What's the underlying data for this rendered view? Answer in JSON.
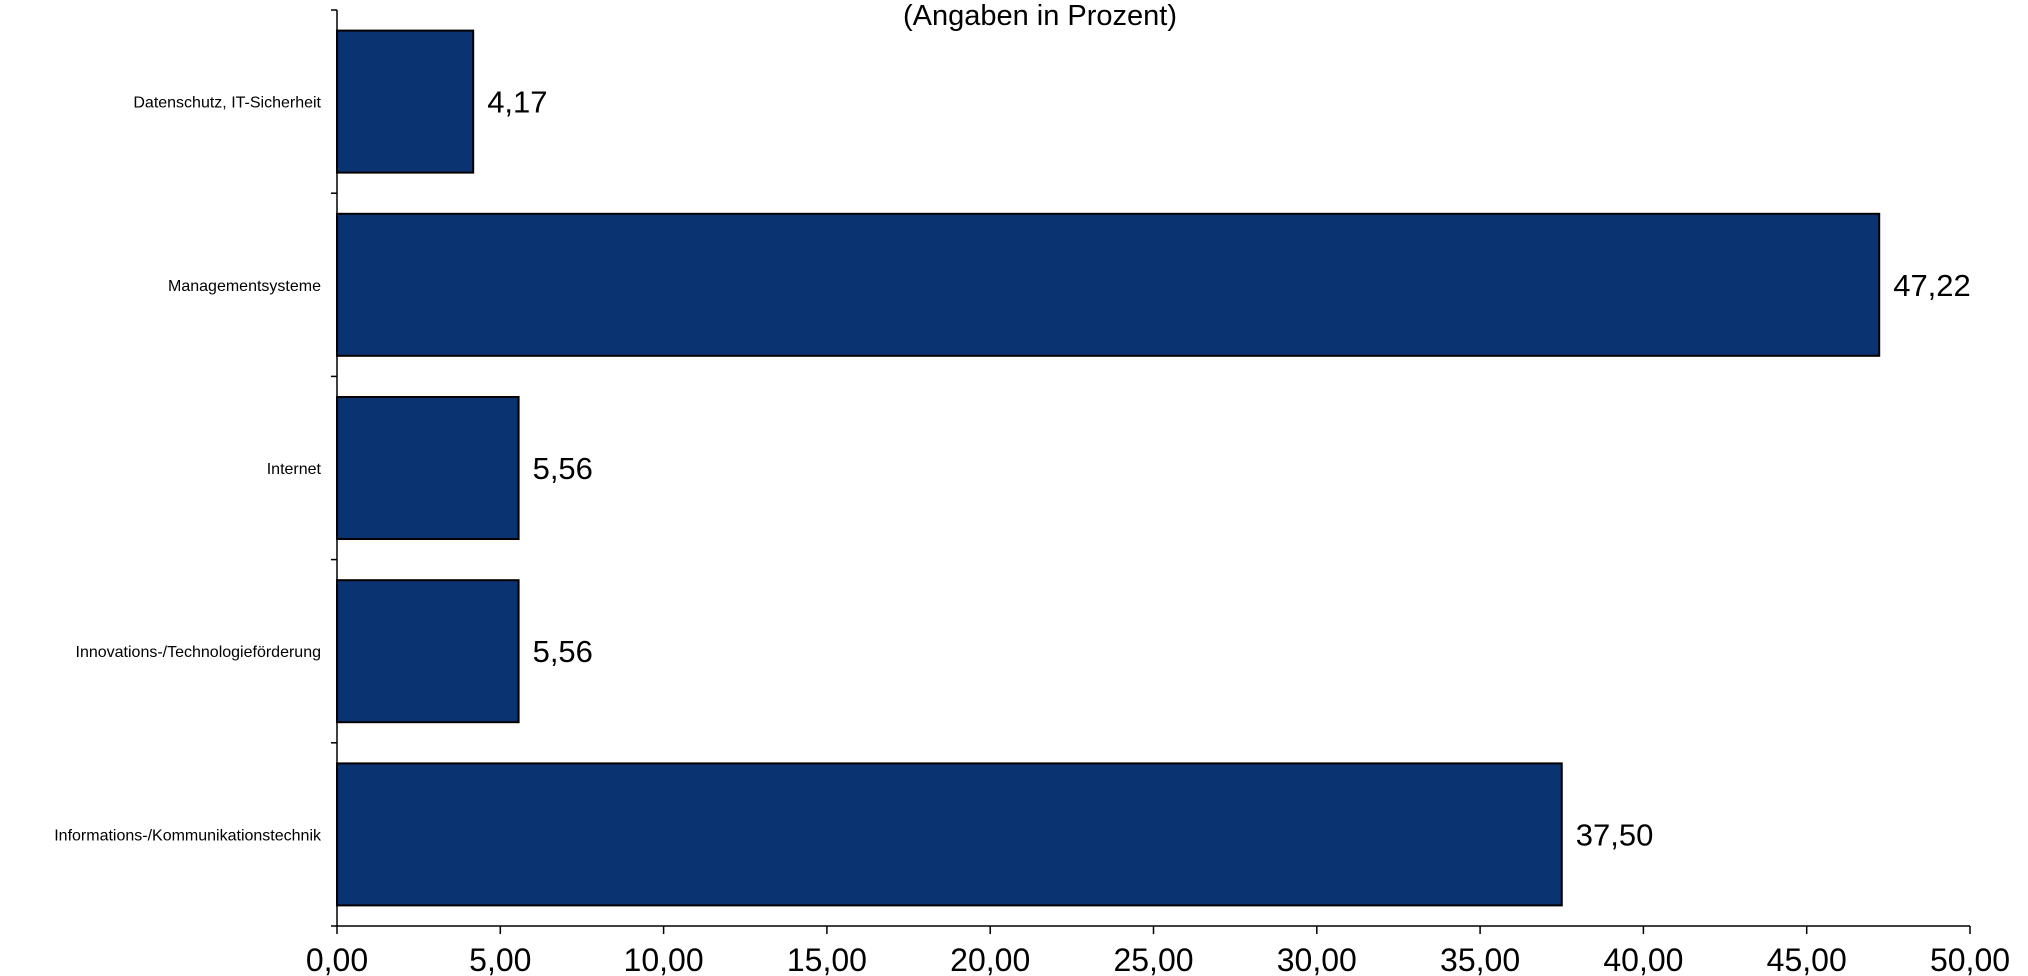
{
  "chart_data": {
    "type": "bar",
    "orientation": "horizontal",
    "subtitle": "(Angaben in Prozent)",
    "categories": [
      "Datenschutz, IT-Sicherheit",
      "Managementsysteme",
      "Internet",
      "Innovations-/Technologieförderung",
      "Informations-/Kommunikationstechnik"
    ],
    "values": [
      4.17,
      47.22,
      5.56,
      5.56,
      37.5
    ],
    "value_labels": [
      "4,17",
      "47,22",
      "5,56",
      "5,56",
      "37,50"
    ],
    "xlim": [
      0,
      50
    ],
    "xticks": [
      0,
      5,
      10,
      15,
      20,
      25,
      30,
      35,
      40,
      45,
      50
    ],
    "xtick_labels": [
      "0,00",
      "5,00",
      "10,00",
      "15,00",
      "20,00",
      "25,00",
      "30,00",
      "35,00",
      "40,00",
      "45,00",
      "50,00"
    ],
    "bar_color": "#0a3372",
    "grid": false,
    "legend": "none"
  }
}
